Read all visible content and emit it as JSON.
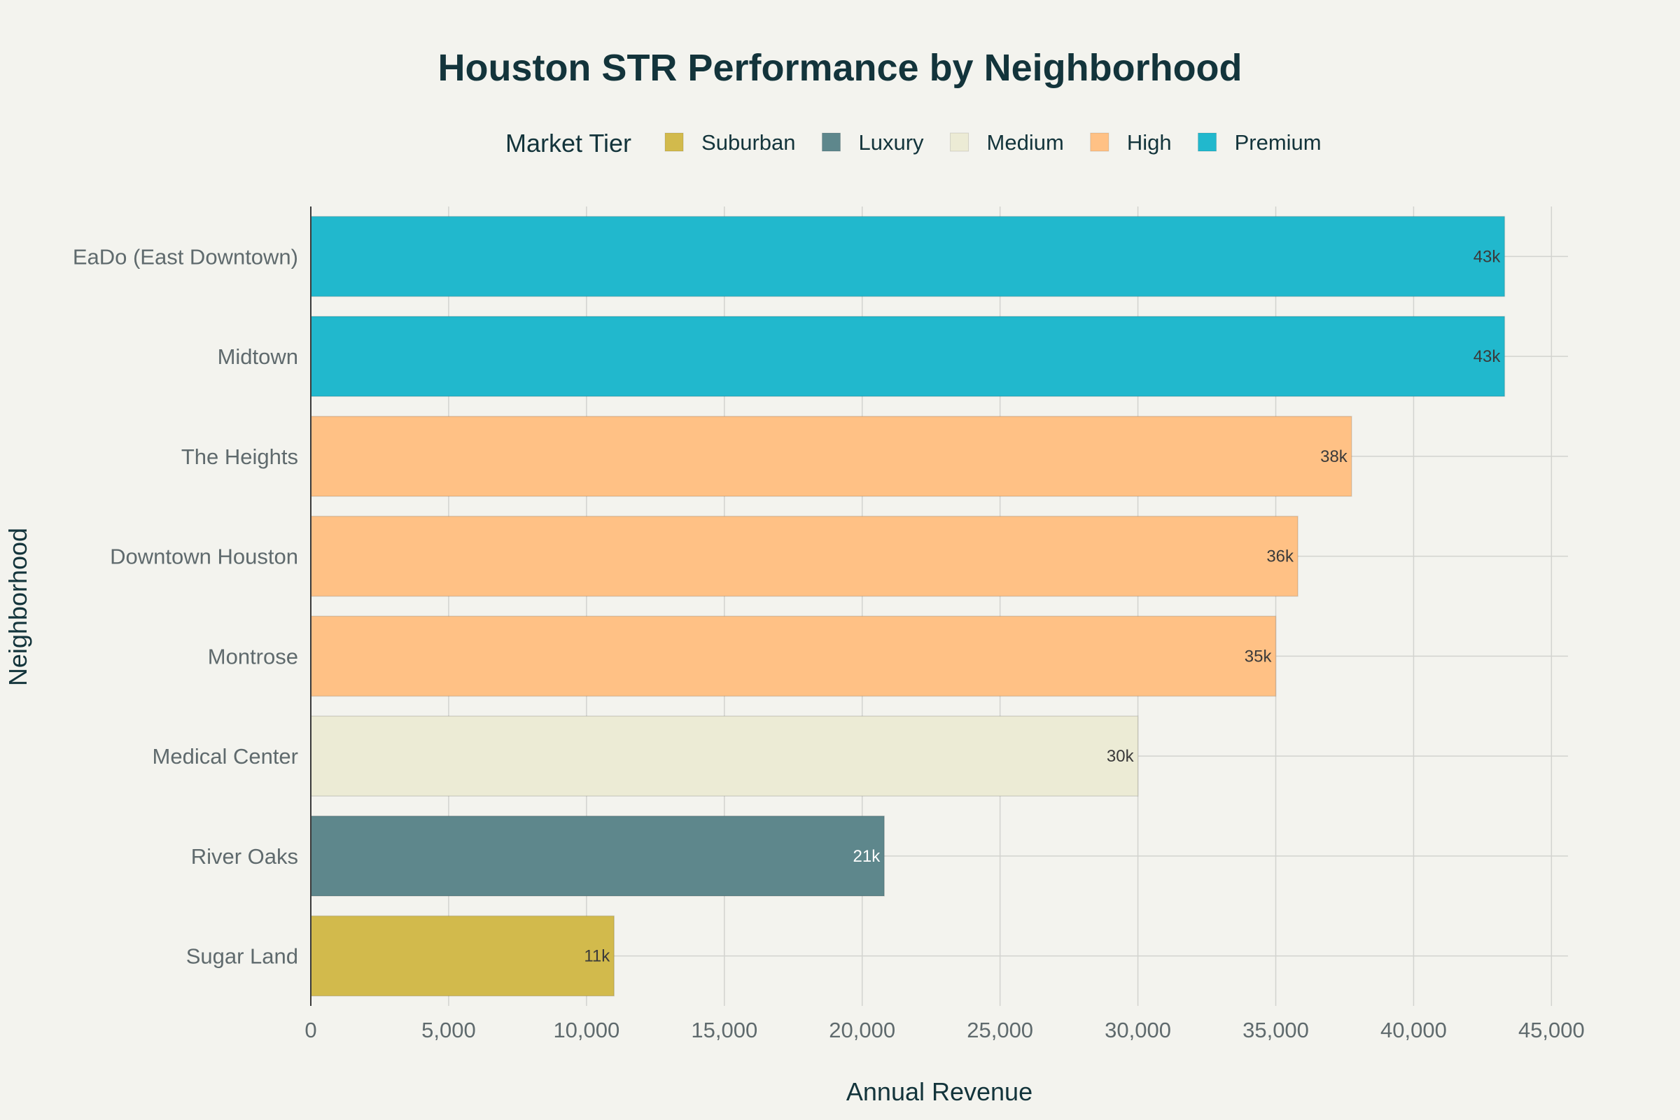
{
  "chart_data": {
    "type": "bar",
    "orientation": "horizontal",
    "title": "Houston STR Performance by Neighborhood",
    "xlabel": "Annual Revenue",
    "ylabel": "Neighborhood",
    "xlim": [
      0,
      45600
    ],
    "xticks": [
      0,
      5000,
      10000,
      15000,
      20000,
      25000,
      30000,
      35000,
      40000,
      45000
    ],
    "xtick_labels": [
      "0",
      "5,000",
      "10,000",
      "15,000",
      "20,000",
      "25,000",
      "30,000",
      "35,000",
      "40,000",
      "45,000"
    ],
    "grid": true,
    "legend": {
      "title": "Market Tier",
      "placement": "top",
      "entries": [
        {
          "name": "Suburban",
          "color": "#d2ba4c"
        },
        {
          "name": "Luxury",
          "color": "#5e878c"
        },
        {
          "name": "Medium",
          "color": "#ecebd5"
        },
        {
          "name": "High",
          "color": "#ffc185"
        },
        {
          "name": "Premium",
          "color": "#21b8cd"
        }
      ]
    },
    "categories": [
      "EaDo (East Downtown)",
      "Midtown",
      "The Heights",
      "Downtown Houston",
      "Montrose",
      "Medical Center",
      "River Oaks",
      "Sugar Land"
    ],
    "values": [
      43300,
      43300,
      37750,
      35800,
      35000,
      30000,
      20800,
      11000
    ],
    "tiers": [
      "Premium",
      "Premium",
      "High",
      "High",
      "High",
      "Medium",
      "Luxury",
      "Suburban"
    ],
    "data_labels": [
      "43k",
      "43k",
      "38k",
      "36k",
      "35k",
      "30k",
      "21k",
      "11k"
    ]
  }
}
